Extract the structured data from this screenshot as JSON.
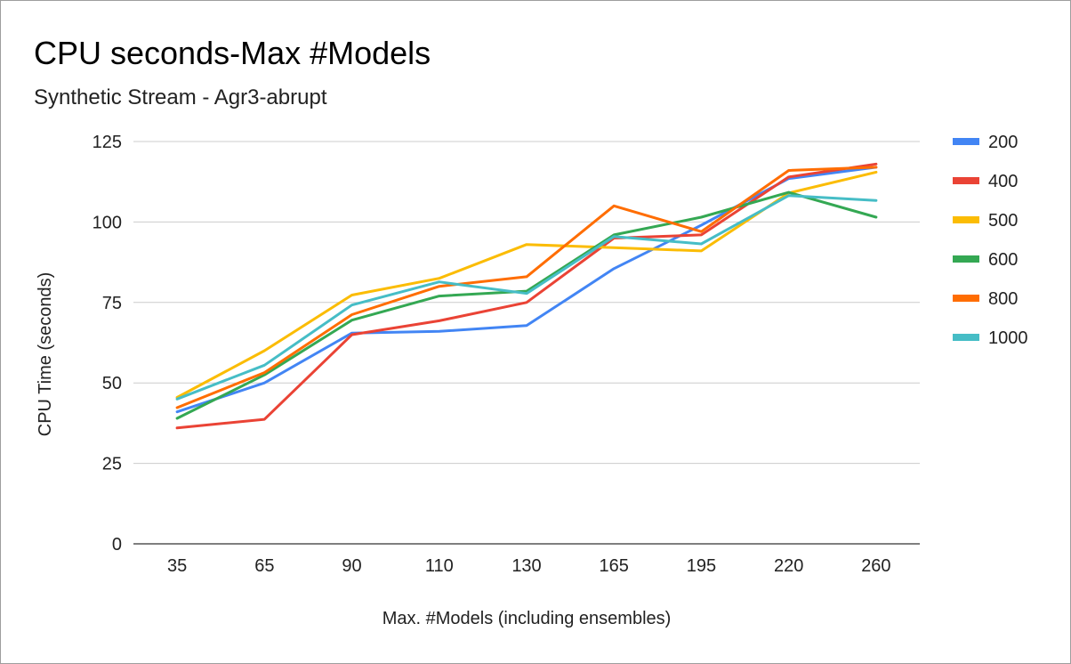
{
  "chart_data": {
    "type": "line",
    "title": "CPU seconds-Max #Models",
    "subtitle": "Synthetic Stream - Agr3-abrupt",
    "xlabel": "Max. #Models (including ensembles)",
    "ylabel": "CPU Time (seconds)",
    "categories": [
      "35",
      "65",
      "90",
      "110",
      "130",
      "165",
      "195",
      "220",
      "260"
    ],
    "ylim": [
      0,
      125
    ],
    "yticks": [
      "0",
      "25",
      "50",
      "75",
      "100",
      "125"
    ],
    "grid": true,
    "legend_position": "right",
    "series": [
      {
        "name": "200",
        "color": "#4285f4",
        "values": [
          41,
          50,
          65.5,
          66,
          67.8,
          85.5,
          99,
          113.5,
          117
        ]
      },
      {
        "name": "400",
        "color": "#ea4335",
        "values": [
          36,
          38.7,
          65,
          69.3,
          75,
          95,
          96,
          114,
          118
        ]
      },
      {
        "name": "500",
        "color": "#fbbc04",
        "values": [
          45.5,
          60,
          77.3,
          82.5,
          93,
          92,
          91,
          109,
          115.5
        ]
      },
      {
        "name": "600",
        "color": "#34a853",
        "values": [
          39,
          52.5,
          69.5,
          77,
          78.5,
          96,
          101.5,
          109.2,
          101.5
        ]
      },
      {
        "name": "800",
        "color": "#ff6d01",
        "values": [
          42.3,
          53.2,
          71.2,
          80,
          83,
          105,
          97,
          116,
          117
        ]
      },
      {
        "name": "1000",
        "color": "#46bdc6",
        "values": [
          45,
          55.5,
          74.2,
          81.4,
          77.8,
          95.5,
          93.2,
          108.2,
          106.7
        ]
      }
    ]
  }
}
